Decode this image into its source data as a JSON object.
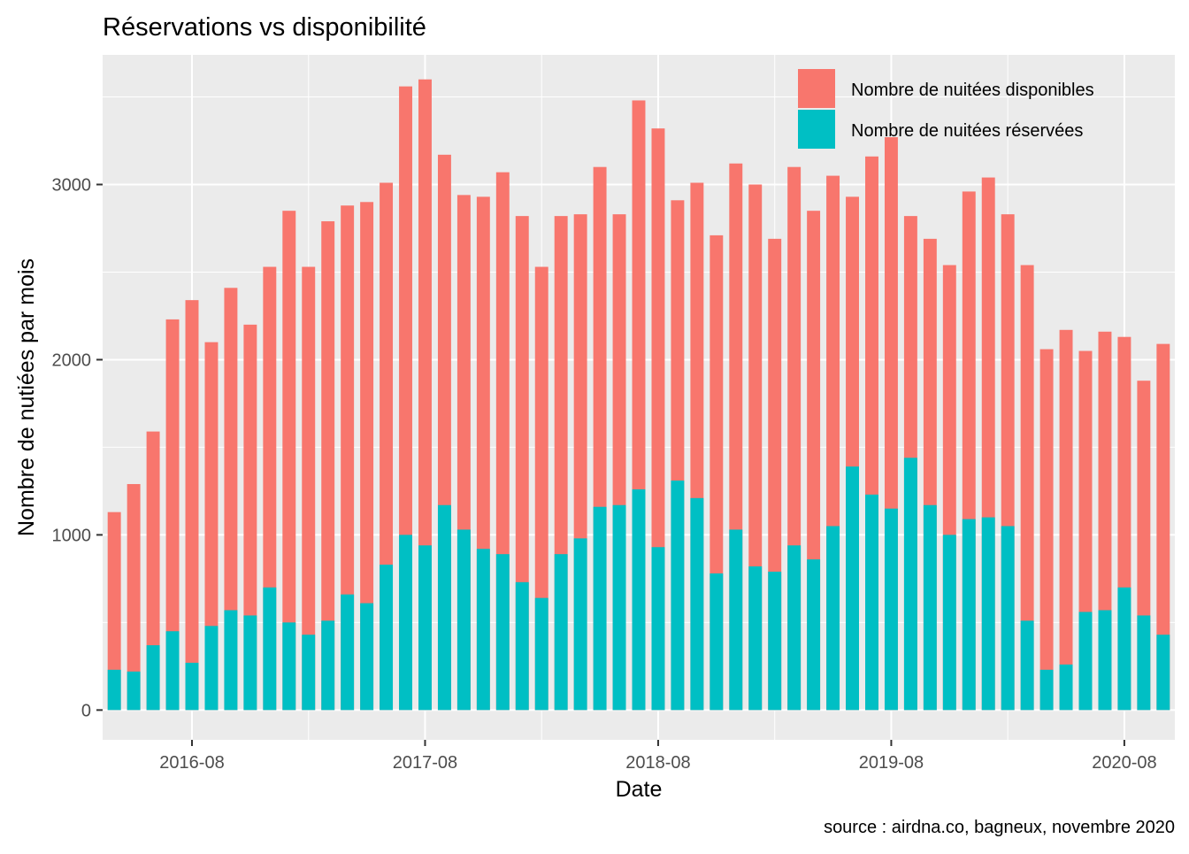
{
  "chart_data": {
    "type": "bar",
    "title": "Réservations vs disponibilité",
    "xlabel": "Date",
    "ylabel": "Nombre de nutiées par mois",
    "caption": "source : airdna.co, bagneux, novembre 2020",
    "stacking": "overlay",
    "ylim": [
      -170,
      3740
    ],
    "y_ticks": [
      0,
      1000,
      2000,
      3000
    ],
    "y_tick_labels": [
      "0",
      "1000",
      "2000",
      "3000"
    ],
    "x_tick_labels": [
      "2016-08",
      "2017-08",
      "2018-08",
      "2019-08",
      "2020-08"
    ],
    "x_tick_dates": [
      "2016-08",
      "2017-08",
      "2018-08",
      "2019-08",
      "2020-08"
    ],
    "grid": true,
    "legend_position": "top-right (inside)",
    "categories": [
      "2016-04",
      "2016-05",
      "2016-06",
      "2016-07",
      "2016-08",
      "2016-09",
      "2016-10",
      "2016-11",
      "2016-12",
      "2017-01",
      "2017-02",
      "2017-03",
      "2017-04",
      "2017-05",
      "2017-06",
      "2017-07",
      "2017-08",
      "2017-09",
      "2017-10",
      "2017-11",
      "2017-12",
      "2018-01",
      "2018-02",
      "2018-03",
      "2018-04",
      "2018-05",
      "2018-06",
      "2018-07",
      "2018-08",
      "2018-09",
      "2018-10",
      "2018-11",
      "2018-12",
      "2019-01",
      "2019-02",
      "2019-03",
      "2019-04",
      "2019-05",
      "2019-06",
      "2019-07",
      "2019-08",
      "2019-09",
      "2019-10",
      "2019-11",
      "2019-12",
      "2020-01",
      "2020-02",
      "2020-03",
      "2020-04",
      "2020-05",
      "2020-06",
      "2020-07",
      "2020-08",
      "2020-09",
      "2020-10"
    ],
    "series": [
      {
        "name": "Nombre de nuitées disponibles",
        "color": "#F8766D",
        "values": [
          1130,
          1290,
          1590,
          2230,
          2340,
          2100,
          2410,
          2200,
          2530,
          2850,
          2530,
          2790,
          2880,
          2900,
          3010,
          3560,
          3600,
          3170,
          2940,
          2930,
          3070,
          2820,
          2530,
          2820,
          2830,
          3100,
          2830,
          3480,
          3320,
          2910,
          3010,
          2710,
          3120,
          3000,
          2690,
          3100,
          2850,
          3050,
          2930,
          3160,
          3270,
          2820,
          2690,
          2540,
          2960,
          3040,
          2830,
          2540,
          2060,
          2170,
          2050,
          2160,
          2130,
          1880,
          2090
        ]
      },
      {
        "name": "Nombre de nuitées réservées",
        "color": "#00BFC4",
        "values": [
          230,
          220,
          370,
          450,
          270,
          480,
          570,
          540,
          700,
          500,
          430,
          510,
          660,
          610,
          830,
          1000,
          940,
          1170,
          1030,
          920,
          890,
          730,
          640,
          890,
          980,
          1160,
          1170,
          1260,
          930,
          1310,
          1210,
          780,
          1030,
          820,
          790,
          940,
          860,
          1050,
          1390,
          1230,
          1150,
          1440,
          1170,
          1000,
          1090,
          1100,
          1050,
          510,
          230,
          260,
          560,
          570,
          700,
          540,
          430
        ]
      }
    ],
    "legend_labels": [
      "Nombre de nuitées disponibles",
      "Nombre de nuitées réservées"
    ]
  }
}
